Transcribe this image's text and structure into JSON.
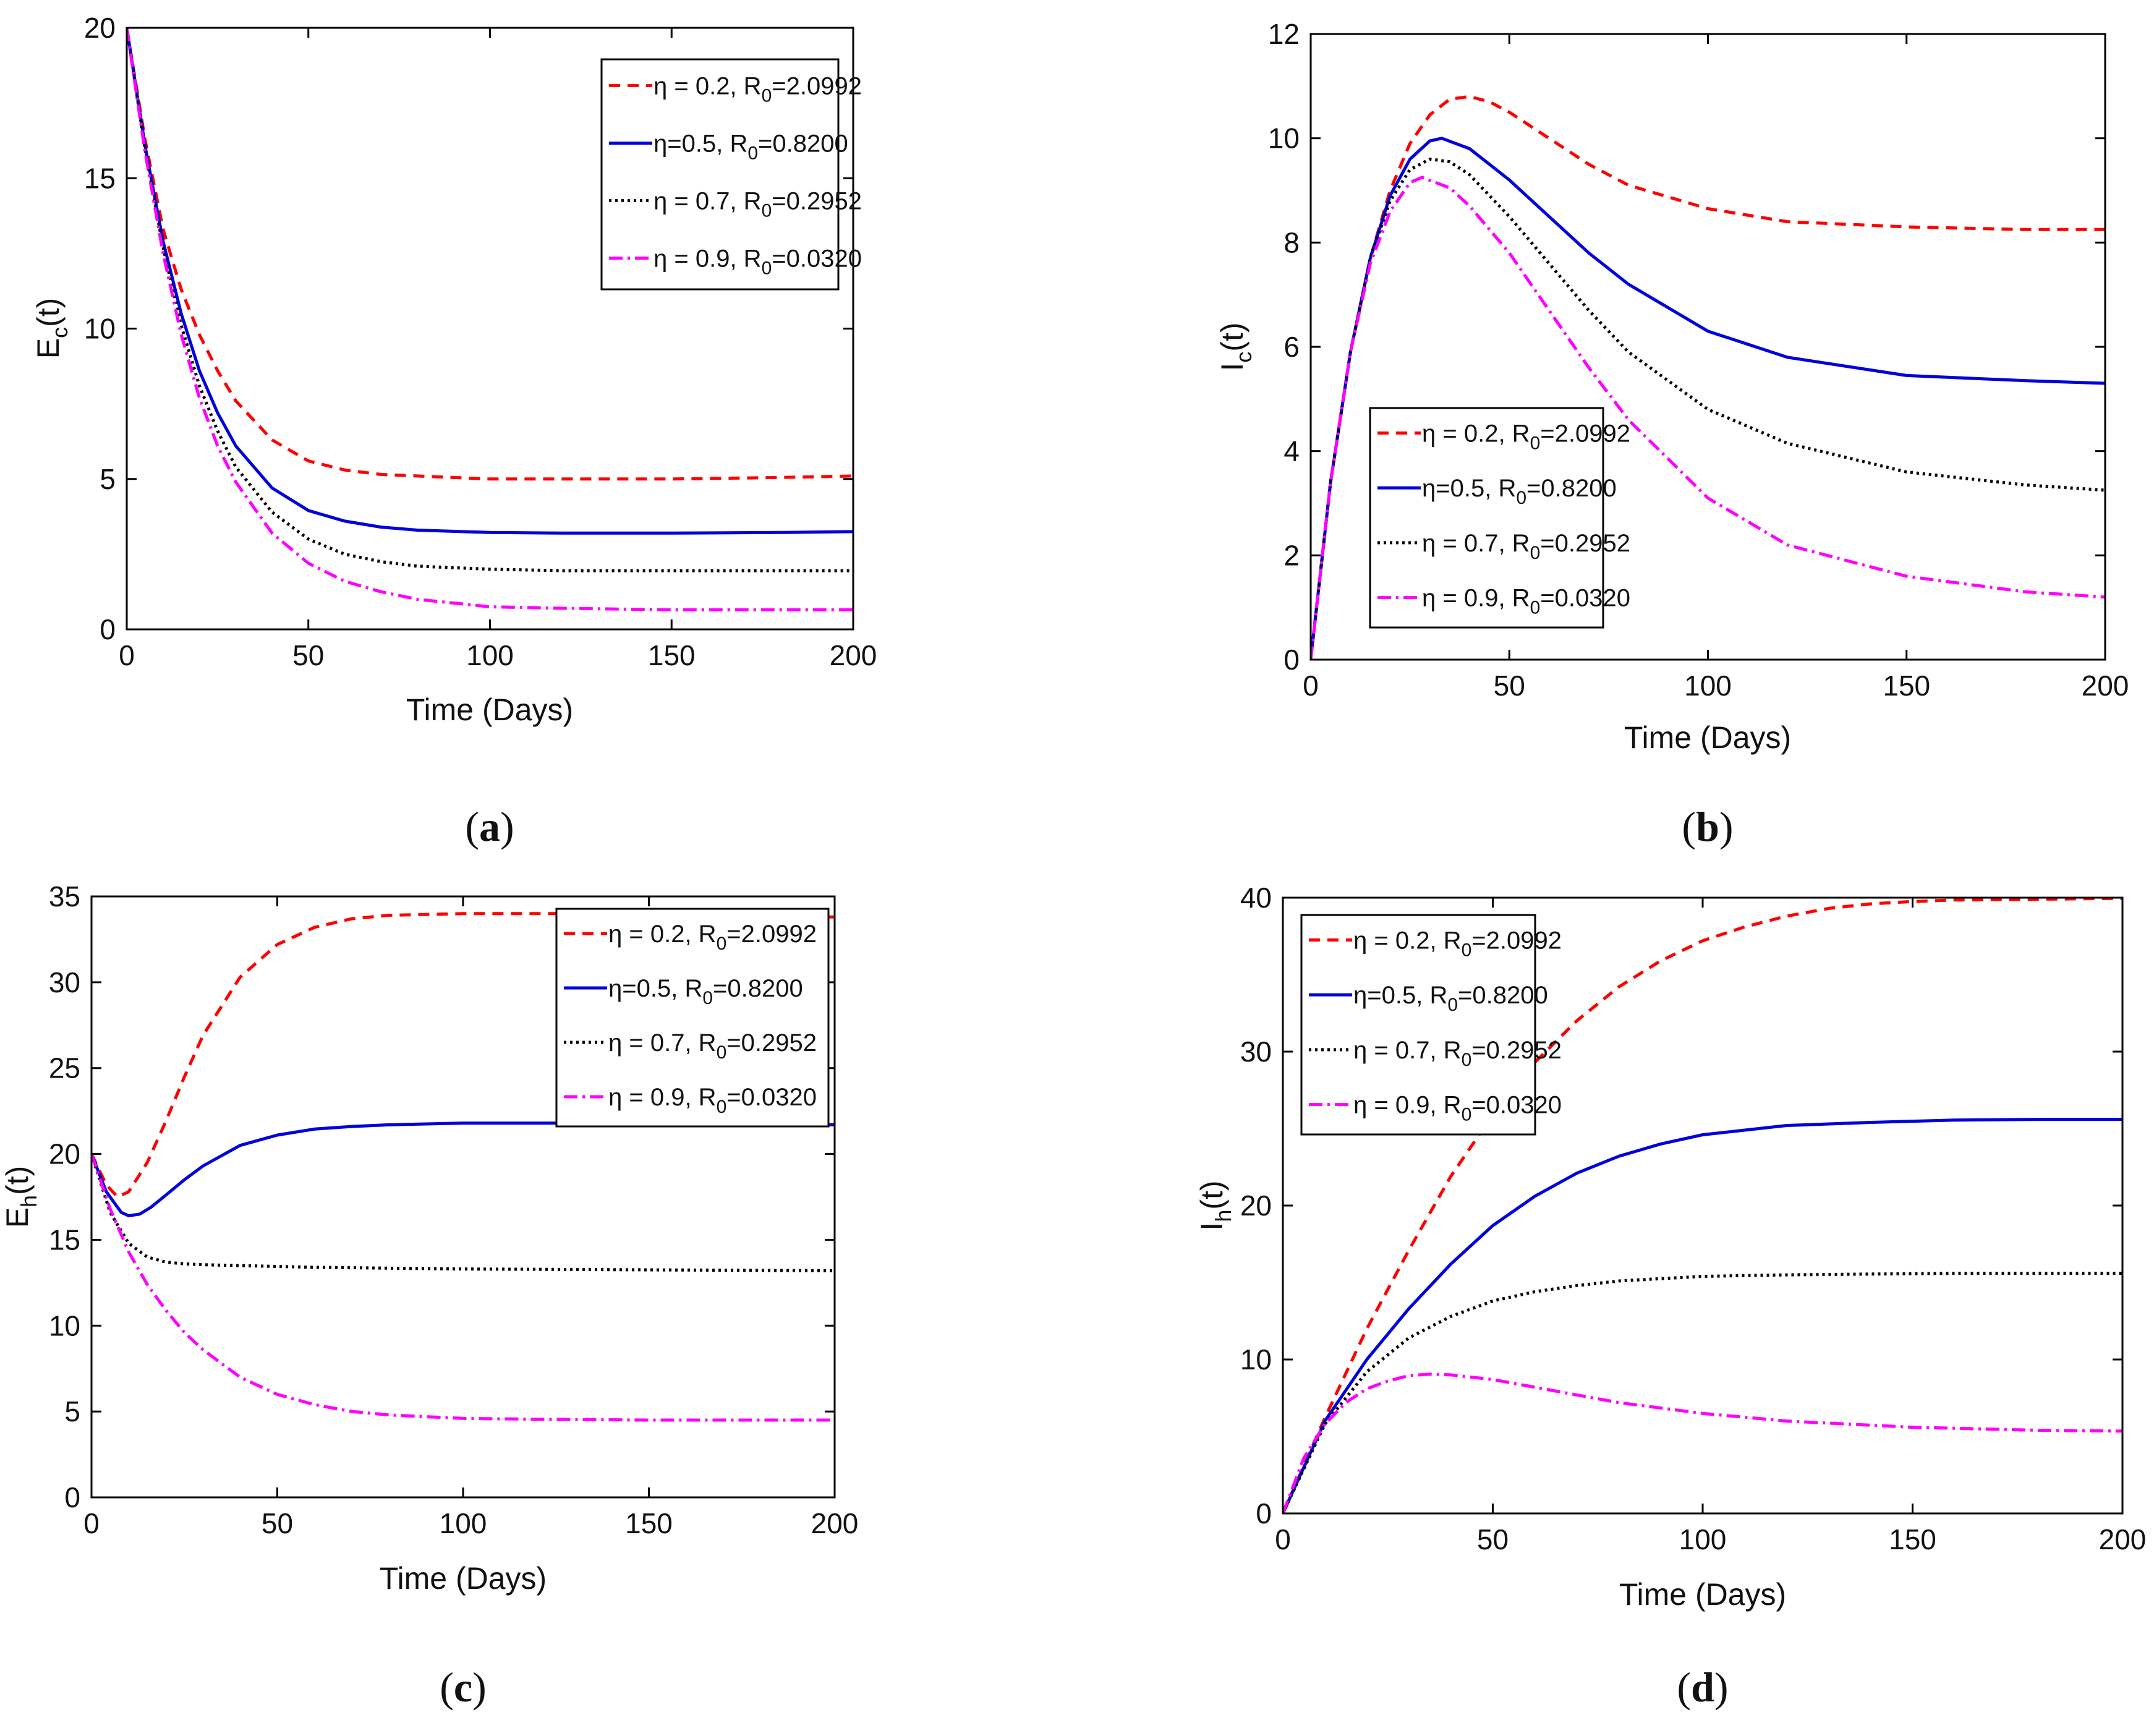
{
  "chart_data": [
    {
      "type": "line",
      "panel": "a",
      "caption": {
        "open": "(",
        "letter": "a",
        "close": ")"
      },
      "xlabel": "Time (Days)",
      "ylabel": {
        "base": "E",
        "sub": "c",
        "suffix": "(t)"
      },
      "xlim": [
        0,
        200
      ],
      "ylim": [
        0,
        20
      ],
      "xticks": [
        0,
        50,
        100,
        150,
        200
      ],
      "yticks": [
        0,
        5,
        10,
        15,
        20
      ],
      "legend_position": "top-right",
      "series": [
        {
          "name": "η = 0.2, R0=2.0992",
          "legend": {
            "pre": "η = 0.2, R",
            "sub": "0",
            "post": "=2.0992"
          },
          "color": "#ff0000",
          "dash": "18,12",
          "x": [
            0,
            5,
            10,
            15,
            20,
            25,
            30,
            40,
            50,
            60,
            70,
            80,
            100,
            120,
            150,
            180,
            200
          ],
          "y": [
            20,
            16.3,
            13.3,
            11.3,
            9.8,
            8.6,
            7.6,
            6.3,
            5.6,
            5.3,
            5.15,
            5.1,
            5.0,
            5.0,
            5.0,
            5.05,
            5.1
          ]
        },
        {
          "name": "η=0.5, R0=0.8200",
          "legend": {
            "pre": "η=0.5, R",
            "sub": "0",
            "post": "=0.8200"
          },
          "color": "#0000dd",
          "dash": "",
          "x": [
            0,
            5,
            10,
            15,
            20,
            25,
            30,
            40,
            50,
            60,
            70,
            80,
            100,
            120,
            150,
            180,
            200
          ],
          "y": [
            20,
            16.1,
            12.9,
            10.5,
            8.6,
            7.2,
            6.1,
            4.7,
            3.95,
            3.6,
            3.4,
            3.3,
            3.22,
            3.2,
            3.2,
            3.22,
            3.25
          ]
        },
        {
          "name": "η = 0.7, R0=0.2952",
          "legend": {
            "pre": "η = 0.7, R",
            "sub": "0",
            "post": "=0.2952"
          },
          "color": "#000000",
          "dash": "4,6",
          "x": [
            0,
            5,
            10,
            15,
            20,
            25,
            30,
            40,
            50,
            60,
            70,
            80,
            100,
            120,
            150,
            180,
            200
          ],
          "y": [
            20,
            16.0,
            12.7,
            10.1,
            8.1,
            6.6,
            5.4,
            3.9,
            3.0,
            2.5,
            2.25,
            2.1,
            2.0,
            1.95,
            1.95,
            1.95,
            1.95
          ]
        },
        {
          "name": "η = 0.9, R0=0.0320",
          "legend": {
            "pre": "η = 0.9, R",
            "sub": "0",
            "post": "=0.0320"
          },
          "color": "#ff00ff",
          "dash": "22,8,4,8",
          "x": [
            0,
            5,
            10,
            15,
            20,
            25,
            30,
            40,
            50,
            60,
            70,
            80,
            100,
            120,
            150,
            180,
            200
          ],
          "y": [
            20,
            15.9,
            12.5,
            9.8,
            7.7,
            6.1,
            4.9,
            3.2,
            2.2,
            1.6,
            1.25,
            1.0,
            0.75,
            0.7,
            0.65,
            0.65,
            0.65
          ]
        }
      ]
    },
    {
      "type": "line",
      "panel": "b",
      "caption": {
        "open": "(",
        "letter": "b",
        "close": ")"
      },
      "xlabel": "Time (Days)",
      "ylabel": {
        "base": "I",
        "sub": "c",
        "suffix": "(t)"
      },
      "xlim": [
        0,
        200
      ],
      "ylim": [
        0,
        12
      ],
      "xticks": [
        0,
        50,
        100,
        150,
        200
      ],
      "yticks": [
        0,
        2,
        4,
        6,
        8,
        10,
        12
      ],
      "legend_position": "lower-left",
      "series": [
        {
          "name": "η = 0.2, R0=2.0992",
          "legend": {
            "pre": "η = 0.2, R",
            "sub": "0",
            "post": "=2.0992"
          },
          "color": "#ff0000",
          "dash": "18,12",
          "x": [
            0,
            5,
            10,
            15,
            20,
            25,
            30,
            35,
            40,
            45,
            50,
            60,
            70,
            80,
            100,
            120,
            150,
            180,
            200
          ],
          "y": [
            0,
            3.4,
            5.9,
            7.7,
            9.0,
            9.9,
            10.45,
            10.75,
            10.8,
            10.7,
            10.5,
            10.0,
            9.5,
            9.1,
            8.65,
            8.4,
            8.3,
            8.25,
            8.25
          ]
        },
        {
          "name": "η=0.5, R0=0.8200",
          "legend": {
            "pre": "η=0.5, R",
            "sub": "0",
            "post": "=0.8200"
          },
          "color": "#0000dd",
          "dash": "",
          "x": [
            0,
            5,
            10,
            15,
            20,
            25,
            30,
            33,
            40,
            50,
            60,
            70,
            80,
            100,
            120,
            150,
            180,
            200
          ],
          "y": [
            0,
            3.4,
            5.9,
            7.7,
            8.9,
            9.6,
            9.95,
            10.0,
            9.8,
            9.2,
            8.5,
            7.8,
            7.2,
            6.3,
            5.8,
            5.45,
            5.35,
            5.3
          ]
        },
        {
          "name": "η = 0.7, R0=0.2952",
          "legend": {
            "pre": "η = 0.7, R",
            "sub": "0",
            "post": "=0.2952"
          },
          "color": "#000000",
          "dash": "4,6",
          "x": [
            0,
            5,
            10,
            15,
            20,
            25,
            30,
            35,
            40,
            50,
            60,
            70,
            80,
            100,
            120,
            150,
            180,
            200
          ],
          "y": [
            0,
            3.4,
            5.9,
            7.7,
            8.8,
            9.4,
            9.6,
            9.55,
            9.3,
            8.5,
            7.6,
            6.7,
            5.9,
            4.8,
            4.15,
            3.6,
            3.35,
            3.25
          ]
        },
        {
          "name": "η = 0.9, R0=0.0320",
          "legend": {
            "pre": "η = 0.9, R",
            "sub": "0",
            "post": "=0.0320"
          },
          "color": "#ff00ff",
          "dash": "22,8,4,8",
          "x": [
            0,
            5,
            10,
            15,
            20,
            25,
            28,
            35,
            40,
            50,
            60,
            70,
            80,
            100,
            120,
            150,
            180,
            200
          ],
          "y": [
            0,
            3.4,
            5.9,
            7.6,
            8.6,
            9.15,
            9.25,
            9.05,
            8.7,
            7.8,
            6.7,
            5.6,
            4.6,
            3.1,
            2.2,
            1.6,
            1.3,
            1.2
          ]
        }
      ]
    },
    {
      "type": "line",
      "panel": "c",
      "caption": {
        "open": "(",
        "letter": "c",
        "close": ")"
      },
      "xlabel": "Time (Days)",
      "ylabel": {
        "base": "E",
        "sub": "h",
        "suffix": "(t)"
      },
      "xlim": [
        0,
        200
      ],
      "ylim": [
        0,
        35
      ],
      "xticks": [
        0,
        50,
        100,
        150,
        200
      ],
      "yticks": [
        0,
        5,
        10,
        15,
        20,
        25,
        30,
        35
      ],
      "legend_position": "top-right",
      "series": [
        {
          "name": "η = 0.2, R0=2.0992",
          "legend": {
            "pre": "η = 0.2, R",
            "sub": "0",
            "post": "=2.0992"
          },
          "color": "#ff0000",
          "dash": "18,12",
          "x": [
            0,
            4,
            7,
            10,
            15,
            20,
            25,
            30,
            40,
            50,
            60,
            70,
            80,
            100,
            120,
            150,
            180,
            200
          ],
          "y": [
            20,
            18.2,
            17.5,
            17.8,
            19.5,
            21.9,
            24.5,
            26.9,
            30.3,
            32.2,
            33.2,
            33.7,
            33.9,
            34.0,
            34.0,
            34.0,
            33.9,
            33.8
          ]
        },
        {
          "name": "η=0.5, R0=0.8200",
          "legend": {
            "pre": "η=0.5, R",
            "sub": "0",
            "post": "=0.8200"
          },
          "color": "#0000dd",
          "dash": "",
          "x": [
            0,
            4,
            8,
            10,
            13,
            16,
            20,
            25,
            30,
            40,
            50,
            60,
            70,
            80,
            100,
            120,
            150,
            180,
            200
          ],
          "y": [
            20,
            17.8,
            16.6,
            16.4,
            16.5,
            16.9,
            17.6,
            18.5,
            19.3,
            20.5,
            21.1,
            21.45,
            21.6,
            21.7,
            21.8,
            21.8,
            21.8,
            21.75,
            21.7
          ]
        },
        {
          "name": "η = 0.7, R0=0.2952",
          "legend": {
            "pre": "η = 0.7, R",
            "sub": "0",
            "post": "=0.2952"
          },
          "color": "#000000",
          "dash": "4,6",
          "x": [
            0,
            5,
            10,
            15,
            20,
            25,
            30,
            40,
            50,
            60,
            80,
            100,
            150,
            200
          ],
          "y": [
            20,
            16.6,
            14.8,
            14.0,
            13.7,
            13.6,
            13.55,
            13.5,
            13.45,
            13.4,
            13.35,
            13.3,
            13.25,
            13.2
          ]
        },
        {
          "name": "η = 0.9, R0=0.0320",
          "legend": {
            "pre": "η = 0.9, R",
            "sub": "0",
            "post": "=0.0320"
          },
          "color": "#ff00ff",
          "dash": "22,8,4,8",
          "x": [
            0,
            5,
            10,
            15,
            20,
            25,
            30,
            40,
            50,
            60,
            70,
            80,
            100,
            120,
            150,
            180,
            200
          ],
          "y": [
            20,
            16.8,
            14.3,
            12.4,
            10.9,
            9.6,
            8.6,
            7.0,
            6.0,
            5.4,
            5.0,
            4.8,
            4.6,
            4.55,
            4.5,
            4.5,
            4.5
          ]
        }
      ]
    },
    {
      "type": "line",
      "panel": "d",
      "caption": {
        "open": "(",
        "letter": "d",
        "close": ")"
      },
      "xlabel": "Time (Days)",
      "ylabel": {
        "base": "I",
        "sub": "h",
        "suffix": "(t)"
      },
      "xlim": [
        0,
        200
      ],
      "ylim": [
        0,
        40
      ],
      "xticks": [
        0,
        50,
        100,
        150,
        200
      ],
      "yticks": [
        0,
        10,
        20,
        30,
        40
      ],
      "legend_position": "top-left",
      "series": [
        {
          "name": "η = 0.2, R0=2.0992",
          "legend": {
            "pre": "η = 0.2, R",
            "sub": "0",
            "post": "=2.0992"
          },
          "color": "#ff0000",
          "dash": "18,12",
          "x": [
            0,
            10,
            20,
            30,
            40,
            50,
            60,
            70,
            80,
            90,
            100,
            110,
            120,
            130,
            140,
            150,
            160,
            180,
            200
          ],
          "y": [
            0,
            6.2,
            12.0,
            17.1,
            21.9,
            25.9,
            29.3,
            32.0,
            34.2,
            35.9,
            37.2,
            38.1,
            38.8,
            39.3,
            39.6,
            39.75,
            39.85,
            39.9,
            39.95
          ]
        },
        {
          "name": "η=0.5, R0=0.8200",
          "legend": {
            "pre": "η=0.5, R",
            "sub": "0",
            "post": "=0.8200"
          },
          "color": "#0000dd",
          "dash": "",
          "x": [
            0,
            10,
            20,
            30,
            40,
            50,
            60,
            70,
            80,
            90,
            100,
            120,
            140,
            160,
            180,
            200
          ],
          "y": [
            0,
            6.0,
            10.0,
            13.3,
            16.2,
            18.7,
            20.6,
            22.1,
            23.2,
            24.0,
            24.6,
            25.2,
            25.4,
            25.55,
            25.6,
            25.6
          ]
        },
        {
          "name": "η = 0.7, R0=0.2952",
          "legend": {
            "pre": "η = 0.7, R",
            "sub": "0",
            "post": "=0.2952"
          },
          "color": "#000000",
          "dash": "4,6",
          "x": [
            0,
            10,
            20,
            30,
            40,
            50,
            60,
            70,
            80,
            100,
            120,
            140,
            160,
            180,
            200
          ],
          "y": [
            0,
            5.8,
            9.2,
            11.4,
            12.8,
            13.8,
            14.4,
            14.8,
            15.1,
            15.4,
            15.5,
            15.55,
            15.6,
            15.6,
            15.6
          ]
        },
        {
          "name": "η = 0.9, R0=0.0320",
          "legend": {
            "pre": "η = 0.9, R",
            "sub": "0",
            "post": "=0.0320"
          },
          "color": "#ff00ff",
          "dash": "22,8,4,8",
          "x": [
            0,
            5,
            10,
            15,
            20,
            25,
            30,
            35,
            40,
            50,
            60,
            70,
            80,
            100,
            120,
            150,
            180,
            200
          ],
          "y": [
            0,
            3.6,
            5.8,
            7.2,
            8.1,
            8.6,
            8.95,
            9.05,
            9.0,
            8.7,
            8.2,
            7.7,
            7.2,
            6.5,
            6.0,
            5.6,
            5.4,
            5.35
          ]
        }
      ]
    }
  ]
}
